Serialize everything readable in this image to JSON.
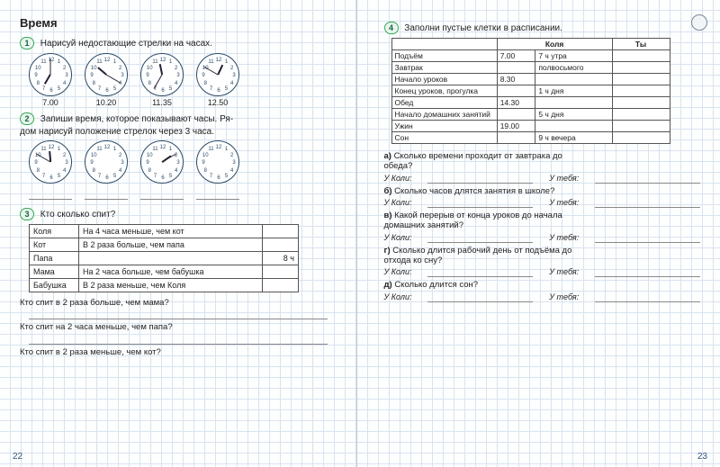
{
  "left": {
    "title": "Время",
    "task1": {
      "num": "1",
      "text": "Нарисуй недостающие стрелки на часах.",
      "clocks": [
        {
          "label": "7.00",
          "hour_deg": 210,
          "min_deg": 0
        },
        {
          "label": "10.20",
          "hour_deg": 310,
          "min_deg": 120
        },
        {
          "label": "11.35",
          "hour_deg": 348,
          "min_deg": 210
        },
        {
          "label": "12.50",
          "hour_deg": 25,
          "min_deg": 300
        }
      ]
    },
    "task2": {
      "num": "2",
      "text1": "Запиши время, которое показывают часы. Ря-",
      "text2": "дом нарисуй положение стрелок через 3 часа.",
      "clocks": [
        {
          "hour_deg": 355,
          "min_deg": 300
        },
        {
          "hour_deg": 0,
          "min_deg": 0,
          "blank": true
        },
        {
          "hour_deg": 55,
          "min_deg": 60
        },
        {
          "hour_deg": 0,
          "min_deg": 0,
          "blank": true
        }
      ]
    },
    "task3": {
      "num": "3",
      "text": "Кто сколько спит?",
      "rows": [
        {
          "who": "Коля",
          "desc": "На 4 часа меньше, чем кот",
          "val": ""
        },
        {
          "who": "Кот",
          "desc": "В 2 раза больше, чем папа",
          "val": ""
        },
        {
          "who": "Папа",
          "desc": "",
          "val": "8 ч"
        },
        {
          "who": "Мама",
          "desc": "На 2 часа больше, чем бабушка",
          "val": ""
        },
        {
          "who": "Бабушка",
          "desc": "В 2 раза меньше, чем Коля",
          "val": ""
        }
      ],
      "qs": [
        "Кто спит в 2 раза больше, чем мама?",
        "Кто спит на 2 часа меньше, чем папа?",
        "Кто спит в 2 раза меньше, чем кот?"
      ]
    },
    "page_no": "22"
  },
  "right": {
    "task4": {
      "num": "4",
      "text": "Заполни пустые клетки в расписании.",
      "headers": [
        "",
        "",
        "Коля",
        "Ты"
      ],
      "rows": [
        {
          "label": "Подъём",
          "c1": "7.00",
          "c2": "7 ч утра",
          "c3": ""
        },
        {
          "label": "Завтрак",
          "c1": "",
          "c2": "полвосьмого",
          "c3": ""
        },
        {
          "label": "Начало уроков",
          "c1": "8.30",
          "c2": "",
          "c3": ""
        },
        {
          "label": "Конец уроков, прогулка",
          "c1": "",
          "c2": "1 ч дня",
          "c3": ""
        },
        {
          "label": "Обед",
          "c1": "14.30",
          "c2": "",
          "c3": ""
        },
        {
          "label": "Начало домашних занятий",
          "c1": "",
          "c2": "5 ч дня",
          "c3": ""
        },
        {
          "label": "Ужин",
          "c1": "19.00",
          "c2": "",
          "c3": ""
        },
        {
          "label": "Сон",
          "c1": "",
          "c2": "9 ч вечера",
          "c3": ""
        }
      ]
    },
    "questions": [
      {
        "bold": "а)",
        "text": "Сколько времени проходит от завтрака до",
        "text2": "обеда?"
      },
      {
        "bold": "б)",
        "text": "Сколько часов длятся занятия в школе?"
      },
      {
        "bold": "в)",
        "text": "Какой перерыв от конца уроков до начала",
        "text2": "домашних занятий?"
      },
      {
        "bold": "г)",
        "text": "Сколько длится рабочий день от подъёма до",
        "text2": "отхода ко сну?"
      },
      {
        "bold": "д)",
        "text": "Сколько длится сон?"
      }
    ],
    "ans_labels": {
      "a": "У Коли:",
      "b": "У тебя:"
    },
    "page_no": "23"
  }
}
